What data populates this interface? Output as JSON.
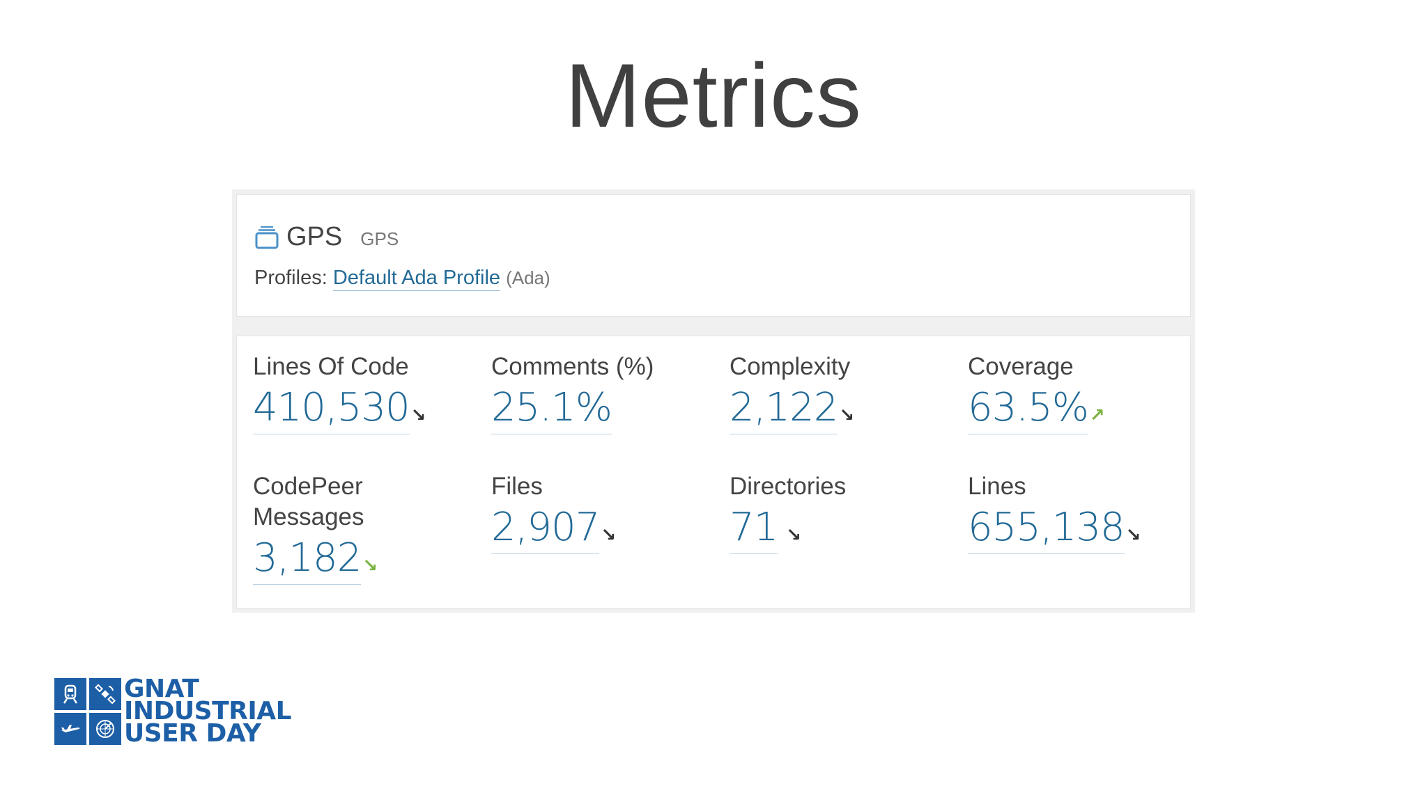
{
  "slide": {
    "title": "Metrics"
  },
  "project": {
    "name": "GPS",
    "key": "GPS",
    "profiles_label": "Profiles:",
    "profile_link": "Default Ada Profile",
    "profile_language": "(Ada)"
  },
  "metrics": [
    {
      "label": "Lines Of Code",
      "value": "410,530",
      "trend": "down",
      "trend_color": "#333333"
    },
    {
      "label": "Comments (%)",
      "value": "25.1%",
      "trend": "none",
      "trend_color": ""
    },
    {
      "label": "Complexity",
      "value": "2,122",
      "trend": "down",
      "trend_color": "#333333"
    },
    {
      "label": "Coverage",
      "value": "63.5%",
      "trend": "up",
      "trend_color": "#7cb342"
    },
    {
      "label": "CodePeer Messages",
      "value": "3,182",
      "trend": "down",
      "trend_color": "#7cb342"
    },
    {
      "label": "Files",
      "value": "2,907",
      "trend": "down",
      "trend_color": "#333333"
    },
    {
      "label": "Directories",
      "value": "71",
      "trend": "down",
      "trend_color": "#333333"
    },
    {
      "label": "Lines",
      "value": "655,138",
      "trend": "down",
      "trend_color": "#333333"
    }
  ],
  "logo": {
    "line1": "GNAT",
    "line2": "INDUSTRIAL",
    "line3": "USER DAY",
    "icons": [
      "train-icon",
      "satellite-icon",
      "airplane-icon",
      "radar-icon"
    ],
    "color": "#1d5fa6"
  },
  "colors": {
    "link": "#236a97",
    "text": "#444444",
    "accent_green": "#7cb342"
  }
}
